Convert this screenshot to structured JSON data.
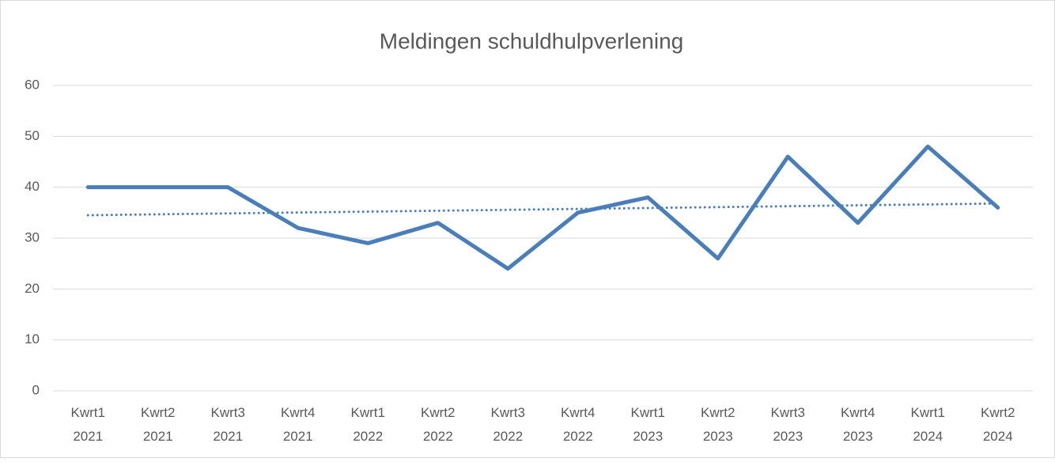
{
  "chart_data": {
    "type": "line",
    "title": "Meldingen schuldhulpverlening",
    "categories": [
      "Kwrt1 2021",
      "Kwrt2 2021",
      "Kwrt3 2021",
      "Kwrt4 2021",
      "Kwrt1 2022",
      "Kwrt2 2022",
      "Kwrt3 2022",
      "Kwrt4 2022",
      "Kwrt1 2023",
      "Kwrt2 2023",
      "Kwrt3 2023",
      "Kwrt4 2023",
      "Kwrt1 2024",
      "Kwrt2 2024"
    ],
    "values": [
      40,
      40,
      40,
      32,
      29,
      33,
      24,
      35,
      38,
      26,
      46,
      33,
      48,
      36
    ],
    "color": "#4a7ebb",
    "trendline": {
      "values": [
        34.5,
        36.8
      ],
      "color": "#4a7ebb",
      "style": "dotted"
    },
    "ylim": [
      0,
      60
    ],
    "yticks": [
      0,
      10,
      20,
      30,
      40,
      50,
      60
    ],
    "grid": true
  }
}
